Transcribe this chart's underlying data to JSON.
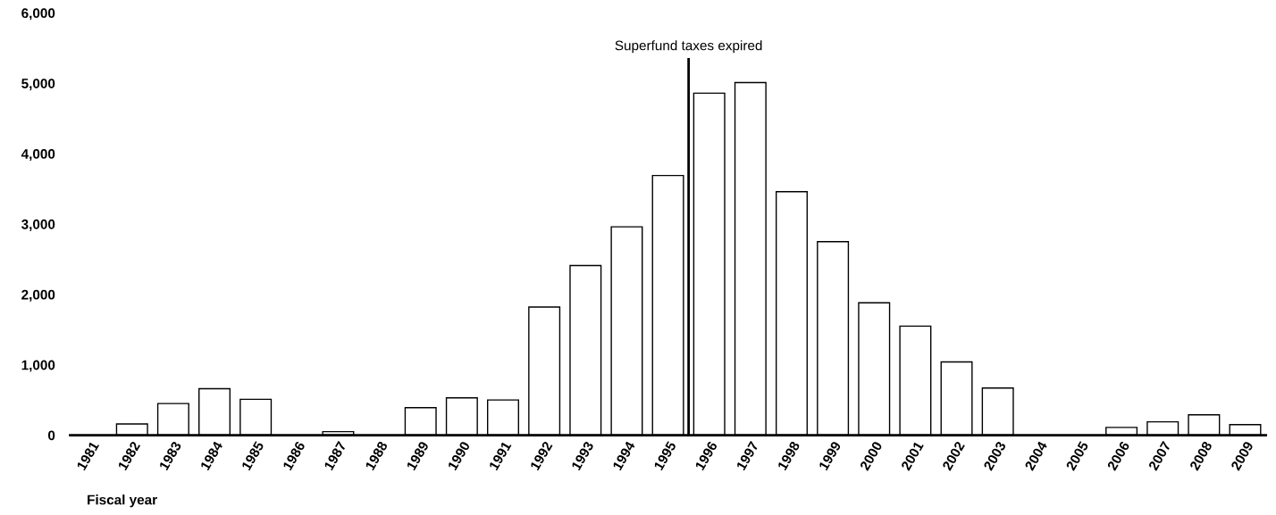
{
  "chart_data": {
    "type": "bar",
    "xlabel": "Fiscal year",
    "x": [
      1982,
      1983,
      1984,
      1985,
      1987,
      1989,
      1990,
      1991,
      1992,
      1993,
      1994,
      1995,
      1996,
      1997,
      1998,
      1999,
      2000,
      2001,
      2002,
      2003,
      2006,
      2007,
      2008,
      2009
    ],
    "values": [
      160,
      450,
      660,
      510,
      50,
      390,
      530,
      500,
      1820,
      2410,
      2960,
      3690,
      4860,
      5010,
      3460,
      2750,
      1880,
      1550,
      1040,
      670,
      110,
      190,
      290,
      150
    ],
    "color": "#ffffff",
    "xlim": [
      1980.5,
      2009.5
    ],
    "xticks": [
      1981,
      1982,
      1983,
      1984,
      1985,
      1986,
      1987,
      1988,
      1989,
      1990,
      1991,
      1992,
      1993,
      1994,
      1995,
      1996,
      1997,
      1998,
      1999,
      2000,
      2001,
      2002,
      2003,
      2004,
      2005,
      2006,
      2007,
      2008,
      2009
    ],
    "ylim": [
      0,
      6000
    ],
    "yticks": [
      {
        "value": 0,
        "label": "0"
      },
      {
        "value": 1000,
        "label": "1,000"
      },
      {
        "value": 2000,
        "label": "2,000"
      },
      {
        "value": 3000,
        "label": "3,000"
      },
      {
        "value": 4000,
        "label": "4,000"
      },
      {
        "value": 5000,
        "label": "5,000"
      },
      {
        "value": 6000,
        "label": "6,000"
      }
    ],
    "ref_lines": [
      {
        "axis": "x",
        "value": 1995.5,
        "label": "Superfund taxes expired",
        "color": "#000000"
      }
    ],
    "grid": false,
    "legend": false
  }
}
